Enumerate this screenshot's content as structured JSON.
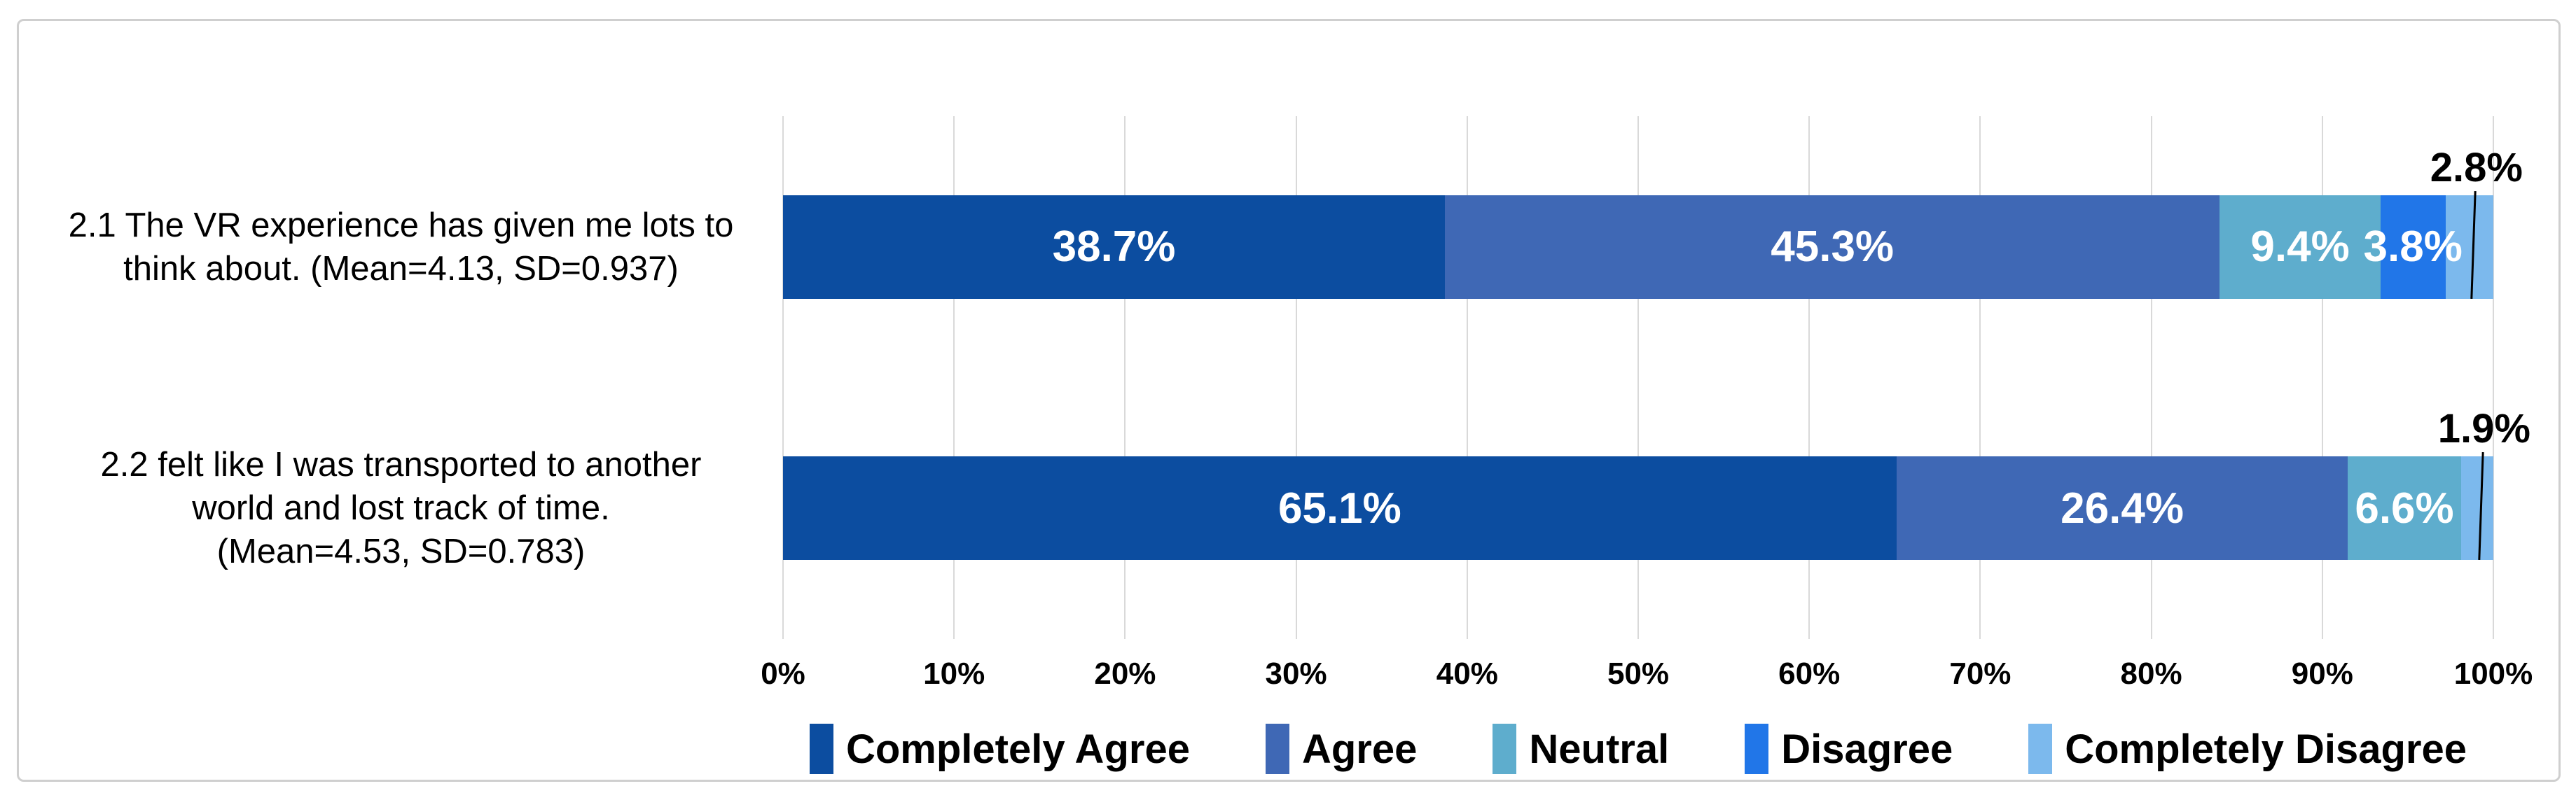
{
  "colors": {
    "gridline": "#d9d9d9",
    "card_border": "#cfcfcf",
    "text": "#000000",
    "bar_label_text": "#ffffff",
    "callout_line": "#000000"
  },
  "chart_data": {
    "type": "bar",
    "orientation": "horizontal",
    "stacked": true,
    "unit": "%",
    "title": "",
    "xlabel": "",
    "ylabel": "",
    "grid": true,
    "axis": {
      "min": 0,
      "max": 100,
      "tick_step": 10,
      "tick_labels": [
        "0%",
        "10%",
        "20%",
        "30%",
        "40%",
        "50%",
        "60%",
        "70%",
        "80%",
        "90%",
        "100%"
      ]
    },
    "legend_position": "bottom",
    "legend": [
      {
        "label": "Completely Agree",
        "color": "#0c4da0"
      },
      {
        "label": "Agree",
        "color": "#3f68b5"
      },
      {
        "label": "Neutral",
        "color": "#5eadcd"
      },
      {
        "label": "Disagree",
        "color": "#2176e8"
      },
      {
        "label": "Completely Disagree",
        "color": "#7cb9ed"
      }
    ],
    "rows": [
      {
        "category_lines": [
          "2.1 The VR experience has given me lots to",
          "think about. (Mean=4.13, SD=0.937)"
        ],
        "mean": "4.13",
        "sd": "0.937",
        "values": [
          {
            "series": "Completely Agree",
            "value": 38.7,
            "label": "38.7%",
            "label_placement": "inside"
          },
          {
            "series": "Agree",
            "value": 45.3,
            "label": "45.3%",
            "label_placement": "inside"
          },
          {
            "series": "Neutral",
            "value": 9.4,
            "label": "9.4%",
            "label_placement": "inside"
          },
          {
            "series": "Disagree",
            "value": 3.8,
            "label": "3.8%",
            "label_placement": "inside"
          },
          {
            "series": "Completely Disagree",
            "value": 2.8,
            "label": "2.8%",
            "label_placement": "outside-callout"
          }
        ]
      },
      {
        "category_lines": [
          "2.2 felt like I was transported to another",
          "world and lost track of time.",
          "(Mean=4.53, SD=0.783)"
        ],
        "mean": "4.53",
        "sd": "0.783",
        "values": [
          {
            "series": "Completely Agree",
            "value": 65.1,
            "label": "65.1%",
            "label_placement": "inside"
          },
          {
            "series": "Agree",
            "value": 26.4,
            "label": "26.4%",
            "label_placement": "inside"
          },
          {
            "series": "Neutral",
            "value": 6.6,
            "label": "6.6%",
            "label_placement": "inside"
          },
          {
            "series": "Completely Disagree",
            "value": 1.9,
            "label": "1.9%",
            "label_placement": "outside-callout"
          }
        ]
      }
    ]
  }
}
